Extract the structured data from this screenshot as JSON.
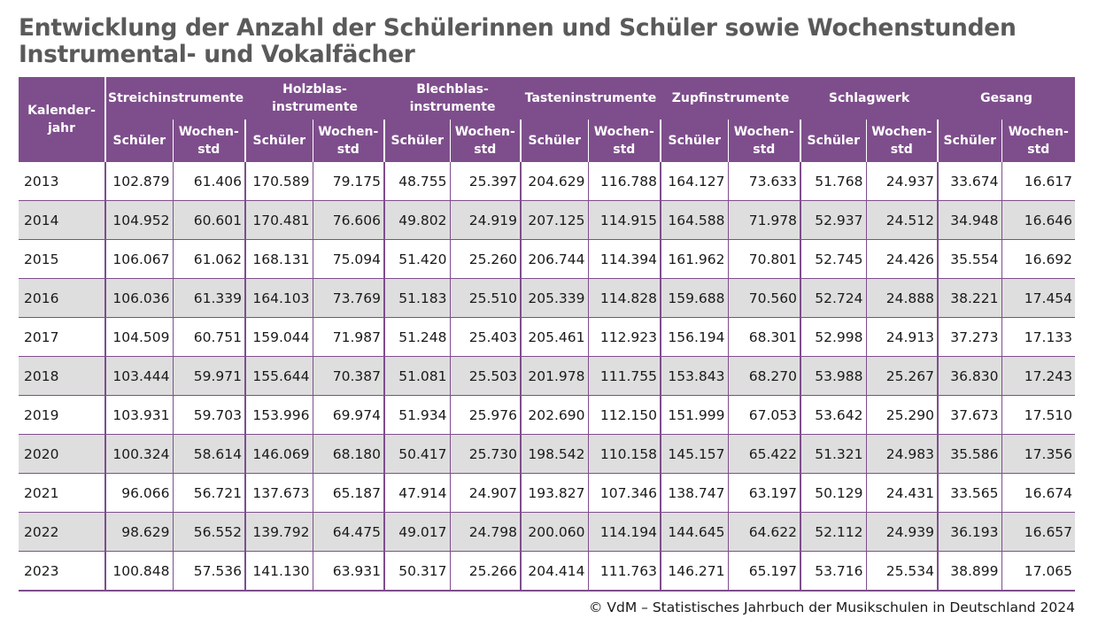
{
  "title_lines": [
    "Entwicklung der Anzahl der Schülerinnen und Schüler sowie Wochenstunden",
    "Instrumental- und Vokalfächer"
  ],
  "source": "© VdM – Statistisches Jahrbuch der Musikschulen in Deutschland 2024",
  "chart_data": {
    "type": "table",
    "title": "Entwicklung der Anzahl der Schülerinnen und Schüler sowie Wochenstunden Instrumental- und Vokalfächer",
    "row_header": [
      "Kalender-",
      "jahr"
    ],
    "sub_headers": [
      [
        "Schüler"
      ],
      [
        "Wochen-",
        "std"
      ]
    ],
    "groups": [
      {
        "label": [
          "Streichinstrumente"
        ]
      },
      {
        "label": [
          "Holzblas-",
          "instrumente"
        ]
      },
      {
        "label": [
          "Blechblas-",
          "instrumente"
        ]
      },
      {
        "label": [
          "Tasteninstrumente"
        ]
      },
      {
        "label": [
          "Zupfinstrumente"
        ]
      },
      {
        "label": [
          "Schlagwerk"
        ]
      },
      {
        "label": [
          "Gesang"
        ]
      }
    ],
    "rows": [
      {
        "year": "2013",
        "values": [
          "102.879",
          "61.406",
          "170.589",
          "79.175",
          "48.755",
          "25.397",
          "204.629",
          "116.788",
          "164.127",
          "73.633",
          "51.768",
          "24.937",
          "33.674",
          "16.617"
        ]
      },
      {
        "year": "2014",
        "values": [
          "104.952",
          "60.601",
          "170.481",
          "76.606",
          "49.802",
          "24.919",
          "207.125",
          "114.915",
          "164.588",
          "71.978",
          "52.937",
          "24.512",
          "34.948",
          "16.646"
        ]
      },
      {
        "year": "2015",
        "values": [
          "106.067",
          "61.062",
          "168.131",
          "75.094",
          "51.420",
          "25.260",
          "206.744",
          "114.394",
          "161.962",
          "70.801",
          "52.745",
          "24.426",
          "35.554",
          "16.692"
        ]
      },
      {
        "year": "2016",
        "values": [
          "106.036",
          "61.339",
          "164.103",
          "73.769",
          "51.183",
          "25.510",
          "205.339",
          "114.828",
          "159.688",
          "70.560",
          "52.724",
          "24.888",
          "38.221",
          "17.454"
        ]
      },
      {
        "year": "2017",
        "values": [
          "104.509",
          "60.751",
          "159.044",
          "71.987",
          "51.248",
          "25.403",
          "205.461",
          "112.923",
          "156.194",
          "68.301",
          "52.998",
          "24.913",
          "37.273",
          "17.133"
        ]
      },
      {
        "year": "2018",
        "values": [
          "103.444",
          "59.971",
          "155.644",
          "70.387",
          "51.081",
          "25.503",
          "201.978",
          "111.755",
          "153.843",
          "68.270",
          "53.988",
          "25.267",
          "36.830",
          "17.243"
        ]
      },
      {
        "year": "2019",
        "values": [
          "103.931",
          "59.703",
          "153.996",
          "69.974",
          "51.934",
          "25.976",
          "202.690",
          "112.150",
          "151.999",
          "67.053",
          "53.642",
          "25.290",
          "37.673",
          "17.510"
        ]
      },
      {
        "year": "2020",
        "values": [
          "100.324",
          "58.614",
          "146.069",
          "68.180",
          "50.417",
          "25.730",
          "198.542",
          "110.158",
          "145.157",
          "65.422",
          "51.321",
          "24.983",
          "35.586",
          "17.356"
        ]
      },
      {
        "year": "2021",
        "values": [
          "96.066",
          "56.721",
          "137.673",
          "65.187",
          "47.914",
          "24.907",
          "193.827",
          "107.346",
          "138.747",
          "63.197",
          "50.129",
          "24.431",
          "33.565",
          "16.674"
        ]
      },
      {
        "year": "2022",
        "values": [
          "98.629",
          "56.552",
          "139.792",
          "64.475",
          "49.017",
          "24.798",
          "200.060",
          "114.194",
          "144.645",
          "64.622",
          "52.112",
          "24.939",
          "36.193",
          "16.657"
        ]
      },
      {
        "year": "2023",
        "values": [
          "100.848",
          "57.536",
          "141.130",
          "63.931",
          "50.317",
          "25.266",
          "204.414",
          "111.763",
          "146.271",
          "65.197",
          "53.716",
          "25.534",
          "38.899",
          "17.065"
        ]
      }
    ]
  },
  "colors": {
    "header_bg": "#7e4e8c",
    "header_text": "#ffffff",
    "stripe": "#dedede",
    "title": "#5a5a5a"
  }
}
